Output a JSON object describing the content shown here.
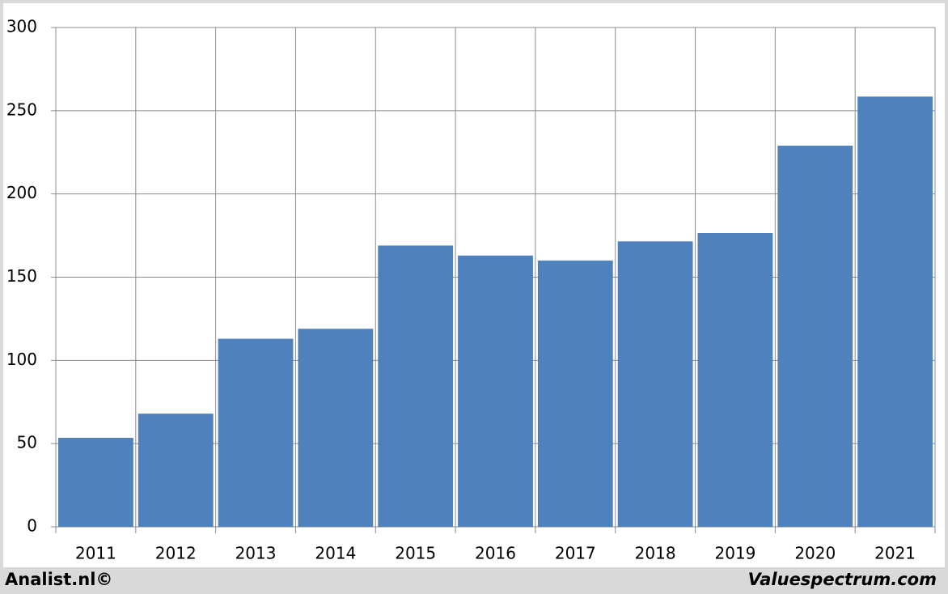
{
  "chart_data": {
    "type": "bar",
    "categories": [
      "2011",
      "2012",
      "2013",
      "2014",
      "2015",
      "2016",
      "2017",
      "2018",
      "2019",
      "2020",
      "2021"
    ],
    "values": [
      53.5,
      68,
      113,
      119,
      169,
      163,
      160,
      171.5,
      176.5,
      229,
      258.5
    ],
    "color": "#4f81bd",
    "ylim": [
      0,
      300
    ],
    "yticks": [
      0,
      50,
      100,
      150,
      200,
      250,
      300
    ],
    "grid": true,
    "credits": [
      "Analist.nl©",
      "Valuespectrum.com"
    ]
  }
}
